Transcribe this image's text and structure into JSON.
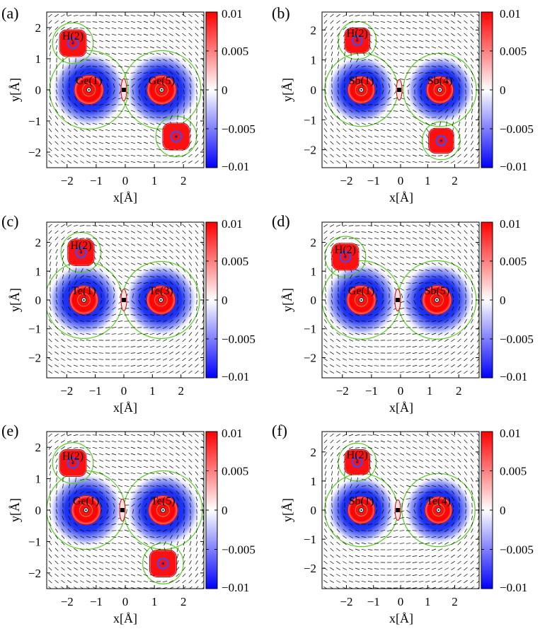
{
  "figure": {
    "panel_labels": [
      "(a)",
      "(b)",
      "(c)",
      "(d)",
      "(e)",
      "(f)"
    ]
  },
  "chart_data": [
    {
      "type": "heatmap",
      "panel": "(a)",
      "xlabel": "x[Å]",
      "ylabel": "y[Å]",
      "xlim": [
        -2.7,
        2.7
      ],
      "ylim": [
        -2.5,
        2.5
      ],
      "xticks": [
        -2,
        -1,
        0,
        1,
        2
      ],
      "yticks": [
        -2,
        -1,
        0,
        1,
        2
      ],
      "colorbar": {
        "min": -0.01,
        "max": 0.01,
        "ticks": [
          "0.01",
          "0.005",
          "0",
          "−0.005",
          "−0.01"
        ],
        "colors": [
          "#ff0000",
          "#ffffff",
          "#0000ff"
        ]
      },
      "atoms": [
        {
          "label": "H(2)",
          "x": -1.8,
          "y": 1.5,
          "kind": "H"
        },
        {
          "label": "Ge(1)",
          "x": -1.25,
          "y": 0.0,
          "kind": "heavy"
        },
        {
          "label": "Ge(5)",
          "x": 1.25,
          "y": 0.0,
          "kind": "heavy"
        },
        {
          "label": "",
          "x": 1.75,
          "y": -1.5,
          "kind": "H"
        }
      ],
      "center_marker": {
        "x": -0.05,
        "y": 0.0
      }
    },
    {
      "type": "heatmap",
      "panel": "(b)",
      "xlabel": "x[Å]",
      "ylabel": "y[Å]",
      "xlim": [
        -2.9,
        2.9
      ],
      "ylim": [
        -2.6,
        2.6
      ],
      "xticks": [
        -2,
        -1,
        0,
        1,
        2
      ],
      "yticks": [
        -2,
        -1,
        0,
        1,
        2
      ],
      "colorbar": {
        "min": -0.01,
        "max": 0.01,
        "ticks": [
          "0.01",
          "0.005",
          "0",
          "−0.005",
          "−0.01"
        ],
        "colors": [
          "#ff0000",
          "#ffffff",
          "#0000ff"
        ]
      },
      "atoms": [
        {
          "label": "H(2)",
          "x": -1.6,
          "y": 1.65,
          "kind": "H"
        },
        {
          "label": "Sb(1)",
          "x": -1.45,
          "y": 0.0,
          "kind": "heavy"
        },
        {
          "label": "Sb(4)",
          "x": 1.45,
          "y": 0.0,
          "kind": "heavy"
        },
        {
          "label": "",
          "x": 1.5,
          "y": -1.7,
          "kind": "H"
        }
      ],
      "center_marker": {
        "x": -0.05,
        "y": 0.0
      }
    },
    {
      "type": "heatmap",
      "panel": "(c)",
      "xlabel": "x[Å]",
      "ylabel": "y[Å]",
      "xlim": [
        -2.7,
        2.8
      ],
      "ylim": [
        -2.7,
        2.7
      ],
      "xticks": [
        -2,
        -1,
        0,
        1,
        2
      ],
      "yticks": [
        -2,
        -1,
        0,
        1,
        2
      ],
      "colorbar": {
        "min": -0.01,
        "max": 0.01,
        "ticks": [
          "0.01",
          "0.005",
          "0",
          "−0.005",
          "−0.01"
        ],
        "colors": [
          "#ff0000",
          "#ffffff",
          "#0000ff"
        ]
      },
      "atoms": [
        {
          "label": "H(2)",
          "x": -1.5,
          "y": 1.65,
          "kind": "H"
        },
        {
          "label": "Te(1)",
          "x": -1.4,
          "y": 0.0,
          "kind": "heavy"
        },
        {
          "label": "Te(3)",
          "x": 1.3,
          "y": 0.0,
          "kind": "heavy"
        }
      ],
      "center_marker": {
        "x": 0.0,
        "y": 0.0
      }
    },
    {
      "type": "heatmap",
      "panel": "(d)",
      "xlabel": "x[Å]",
      "ylabel": "y[Å]",
      "xlim": [
        -2.7,
        2.7
      ],
      "ylim": [
        -2.7,
        2.7
      ],
      "xticks": [
        -2,
        -1,
        0,
        1,
        2
      ],
      "yticks": [
        -2,
        -1,
        0,
        1,
        2
      ],
      "colorbar": {
        "min": -0.01,
        "max": 0.01,
        "ticks": [
          "0.01",
          "0.005",
          "0",
          "−0.005",
          "−0.01"
        ],
        "colors": [
          "#ff0000",
          "#ffffff",
          "#0000ff"
        ]
      },
      "atoms": [
        {
          "label": "H(2)",
          "x": -1.9,
          "y": 1.5,
          "kind": "H"
        },
        {
          "label": "Ge(1)",
          "x": -1.35,
          "y": 0.0,
          "kind": "heavy"
        },
        {
          "label": "Sb(5)",
          "x": 1.25,
          "y": 0.0,
          "kind": "heavy"
        }
      ],
      "center_marker": {
        "x": -0.1,
        "y": 0.0
      }
    },
    {
      "type": "heatmap",
      "panel": "(e)",
      "xlabel": "x[Å]",
      "ylabel": "y[Å]",
      "xlim": [
        -2.7,
        2.7
      ],
      "ylim": [
        -2.5,
        2.5
      ],
      "xticks": [
        -2,
        -1,
        0,
        1,
        2
      ],
      "yticks": [
        -2,
        -1,
        0,
        1,
        2
      ],
      "colorbar": {
        "min": -0.01,
        "max": 0.01,
        "ticks": [
          "0.01",
          "0.005",
          "0",
          "−0.005",
          "−0.01"
        ],
        "colors": [
          "#ff0000",
          "#ffffff",
          "#0000ff"
        ]
      },
      "atoms": [
        {
          "label": "H(2)",
          "x": -1.8,
          "y": 1.5,
          "kind": "H"
        },
        {
          "label": "Ge(1)",
          "x": -1.35,
          "y": 0.0,
          "kind": "heavy"
        },
        {
          "label": "Te(5)",
          "x": 1.3,
          "y": 0.0,
          "kind": "heavy"
        },
        {
          "label": "",
          "x": 1.3,
          "y": -1.7,
          "kind": "H"
        }
      ],
      "center_marker": {
        "x": -0.1,
        "y": 0.0
      }
    },
    {
      "type": "heatmap",
      "panel": "(f)",
      "xlabel": "x[Å]",
      "ylabel": "y[Å]",
      "xlim": [
        -2.9,
        2.9
      ],
      "ylim": [
        -2.7,
        2.7
      ],
      "xticks": [
        -2,
        -1,
        0,
        1,
        2
      ],
      "yticks": [
        -2,
        -1,
        0,
        1,
        2
      ],
      "colorbar": {
        "min": -0.01,
        "max": 0.01,
        "ticks": [
          "0.01",
          "0.005",
          "0",
          "−0.005",
          "−0.01"
        ],
        "colors": [
          "#ff0000",
          "#ffffff",
          "#0000ff"
        ]
      },
      "atoms": [
        {
          "label": "H(2)",
          "x": -1.6,
          "y": 1.65,
          "kind": "H"
        },
        {
          "label": "Sb(1)",
          "x": -1.45,
          "y": 0.0,
          "kind": "heavy"
        },
        {
          "label": "Te(4)",
          "x": 1.4,
          "y": 0.0,
          "kind": "heavy"
        }
      ],
      "center_marker": {
        "x": -0.1,
        "y": 0.0
      }
    }
  ]
}
